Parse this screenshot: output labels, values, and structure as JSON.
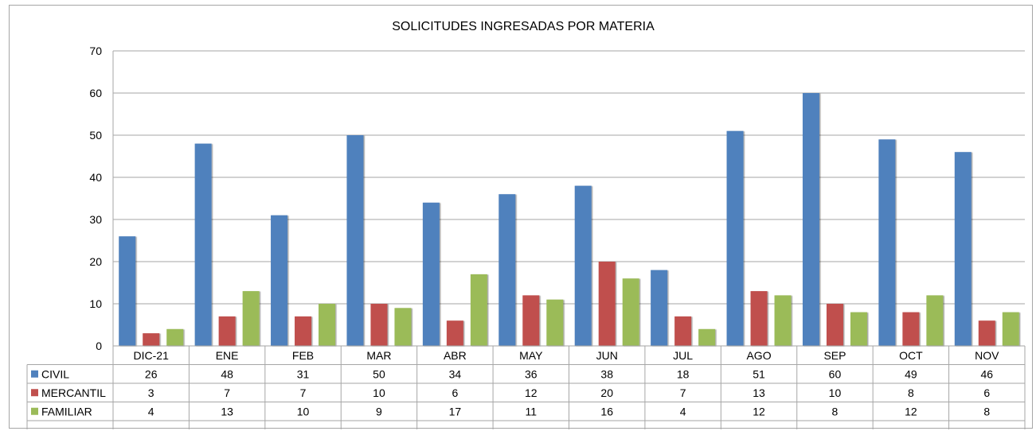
{
  "chart_data": {
    "type": "bar",
    "title": "SOLICITUDES INGRESADAS POR MATERIA",
    "categories": [
      "DIC-21",
      "ENE",
      "FEB",
      "MAR",
      "ABR",
      "MAY",
      "JUN",
      "JUL",
      "AGO",
      "SEP",
      "OCT",
      "NOV"
    ],
    "series": [
      {
        "name": "CIVIL",
        "color": "#4f81bd",
        "values": [
          26,
          48,
          31,
          50,
          34,
          36,
          38,
          18,
          51,
          60,
          49,
          46
        ]
      },
      {
        "name": "MERCANTIL",
        "color": "#c0504d",
        "values": [
          3,
          7,
          7,
          10,
          6,
          12,
          20,
          7,
          13,
          10,
          8,
          6
        ]
      },
      {
        "name": "FAMILIAR",
        "color": "#9bbb59",
        "values": [
          4,
          13,
          10,
          9,
          17,
          11,
          16,
          4,
          12,
          8,
          12,
          8
        ]
      }
    ],
    "ylim": [
      0,
      70
    ],
    "yticks": [
      0,
      10,
      20,
      30,
      40,
      50,
      60,
      70
    ],
    "grid": true,
    "legend": "data-table-left"
  }
}
